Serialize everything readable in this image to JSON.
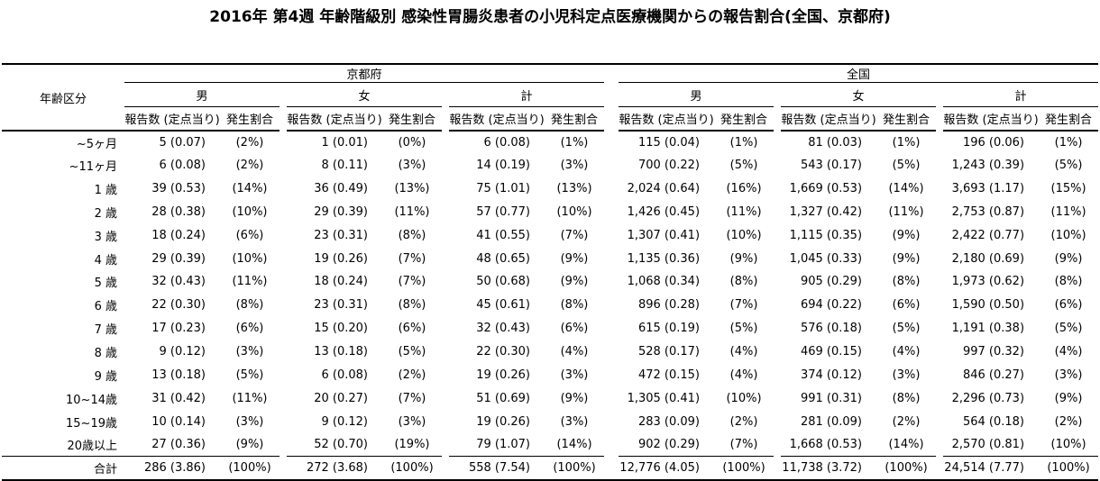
{
  "title": "2016年 第4週 年齢階級別 感染性胃腸炎患者の小児科定点医療機関からの報告割合(全国、京都府)",
  "colors": {
    "text": "#000000",
    "background": "#ffffff",
    "rule": "#000000"
  },
  "table": {
    "age_column_header": "年齢区分",
    "regions": [
      "京都府",
      "全国"
    ],
    "sex_headers": [
      "男",
      "女",
      "計"
    ],
    "metric_headers": [
      "報告数 (定点当り)",
      "発生割合"
    ],
    "rows": [
      {
        "age": "~5ヶ月",
        "cells": [
          "5 (0.07)",
          "(2%)",
          "1 (0.01)",
          "(0%)",
          "6 (0.08)",
          "(1%)",
          "115 (0.04)",
          "(1%)",
          "81 (0.03)",
          "(1%)",
          "196 (0.06)",
          "(1%)"
        ]
      },
      {
        "age": "~11ヶ月",
        "cells": [
          "6 (0.08)",
          "(2%)",
          "8 (0.11)",
          "(3%)",
          "14 (0.19)",
          "(3%)",
          "700 (0.22)",
          "(5%)",
          "543 (0.17)",
          "(5%)",
          "1,243 (0.39)",
          "(5%)"
        ]
      },
      {
        "age": "1 歳",
        "cells": [
          "39 (0.53)",
          "(14%)",
          "36 (0.49)",
          "(13%)",
          "75 (1.01)",
          "(13%)",
          "2,024 (0.64)",
          "(16%)",
          "1,669 (0.53)",
          "(14%)",
          "3,693 (1.17)",
          "(15%)"
        ]
      },
      {
        "age": "2 歳",
        "cells": [
          "28 (0.38)",
          "(10%)",
          "29 (0.39)",
          "(11%)",
          "57 (0.77)",
          "(10%)",
          "1,426 (0.45)",
          "(11%)",
          "1,327 (0.42)",
          "(11%)",
          "2,753 (0.87)",
          "(11%)"
        ]
      },
      {
        "age": "3 歳",
        "cells": [
          "18 (0.24)",
          "(6%)",
          "23 (0.31)",
          "(8%)",
          "41 (0.55)",
          "(7%)",
          "1,307 (0.41)",
          "(10%)",
          "1,115 (0.35)",
          "(9%)",
          "2,422 (0.77)",
          "(10%)"
        ]
      },
      {
        "age": "4 歳",
        "cells": [
          "29 (0.39)",
          "(10%)",
          "19 (0.26)",
          "(7%)",
          "48 (0.65)",
          "(9%)",
          "1,135 (0.36)",
          "(9%)",
          "1,045 (0.33)",
          "(9%)",
          "2,180 (0.69)",
          "(9%)"
        ]
      },
      {
        "age": "5 歳",
        "cells": [
          "32 (0.43)",
          "(11%)",
          "18 (0.24)",
          "(7%)",
          "50 (0.68)",
          "(9%)",
          "1,068 (0.34)",
          "(8%)",
          "905 (0.29)",
          "(8%)",
          "1,973 (0.62)",
          "(8%)"
        ]
      },
      {
        "age": "6 歳",
        "cells": [
          "22 (0.30)",
          "(8%)",
          "23 (0.31)",
          "(8%)",
          "45 (0.61)",
          "(8%)",
          "896 (0.28)",
          "(7%)",
          "694 (0.22)",
          "(6%)",
          "1,590 (0.50)",
          "(6%)"
        ]
      },
      {
        "age": "7 歳",
        "cells": [
          "17 (0.23)",
          "(6%)",
          "15 (0.20)",
          "(6%)",
          "32 (0.43)",
          "(6%)",
          "615 (0.19)",
          "(5%)",
          "576 (0.18)",
          "(5%)",
          "1,191 (0.38)",
          "(5%)"
        ]
      },
      {
        "age": "8 歳",
        "cells": [
          "9 (0.12)",
          "(3%)",
          "13 (0.18)",
          "(5%)",
          "22 (0.30)",
          "(4%)",
          "528 (0.17)",
          "(4%)",
          "469 (0.15)",
          "(4%)",
          "997 (0.32)",
          "(4%)"
        ]
      },
      {
        "age": "9 歳",
        "cells": [
          "13 (0.18)",
          "(5%)",
          "6 (0.08)",
          "(2%)",
          "19 (0.26)",
          "(3%)",
          "472 (0.15)",
          "(4%)",
          "374 (0.12)",
          "(3%)",
          "846 (0.27)",
          "(3%)"
        ]
      },
      {
        "age": "10~14歳",
        "cells": [
          "31 (0.42)",
          "(11%)",
          "20 (0.27)",
          "(7%)",
          "51 (0.69)",
          "(9%)",
          "1,305 (0.41)",
          "(10%)",
          "991 (0.31)",
          "(8%)",
          "2,296 (0.73)",
          "(9%)"
        ]
      },
      {
        "age": "15~19歳",
        "cells": [
          "10 (0.14)",
          "(3%)",
          "9 (0.12)",
          "(3%)",
          "19 (0.26)",
          "(3%)",
          "283 (0.09)",
          "(2%)",
          "281 (0.09)",
          "(2%)",
          "564 (0.18)",
          "(2%)"
        ]
      },
      {
        "age": "20歳以上",
        "cells": [
          "27 (0.36)",
          "(9%)",
          "52 (0.70)",
          "(19%)",
          "79 (1.07)",
          "(14%)",
          "902 (0.29)",
          "(7%)",
          "1,668 (0.53)",
          "(14%)",
          "2,570 (0.81)",
          "(10%)"
        ]
      }
    ],
    "total_row": {
      "age": "合計",
      "cells": [
        "286 (3.86)",
        "(100%)",
        "272 (3.68)",
        "(100%)",
        "558 (7.54)",
        "(100%)",
        "12,776 (4.05)",
        "(100%)",
        "11,738 (3.72)",
        "(100%)",
        "24,514 (7.77)",
        "(100%)"
      ]
    }
  }
}
